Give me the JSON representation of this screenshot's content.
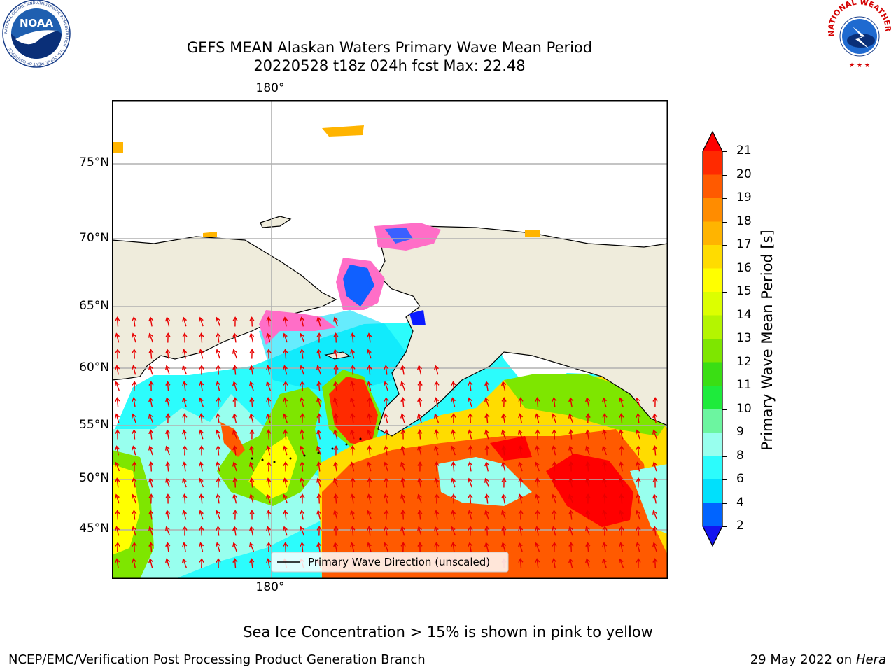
{
  "title": {
    "line1": "GEFS MEAN Alaskan Waters Primary Wave Mean Period",
    "line2": "20220528 t18z 024h fcst   Max: 22.48"
  },
  "logos": {
    "noaa_text": "NOAA",
    "noaa_ring": "NATIONAL OCEANIC AND ATMOSPHERIC ADMINISTRATION · U.S. DEPARTMENT OF COMMERCE",
    "nws_ring": "NATIONAL WEATHER SERVICE"
  },
  "map": {
    "lat_labels": [
      "75°N",
      "70°N",
      "65°N",
      "60°N",
      "55°N",
      "50°N",
      "45°N"
    ],
    "lon_label_top": "180°",
    "lon_label_bottom": "180°",
    "legend_label": "Primary Wave Direction (unscaled)",
    "land_color": "#efecdc",
    "arrow_color": "#e80000",
    "grid_color": "#b0b0b0"
  },
  "colorbar": {
    "label": "Primary Wave Mean Period [s]",
    "ticks": [
      "21",
      "20",
      "19",
      "18",
      "17",
      "16",
      "15",
      "14",
      "13",
      "12",
      "11",
      "10",
      "9",
      "8",
      "6",
      "4",
      "2"
    ],
    "colors": [
      "#ff0000",
      "#ff2a00",
      "#ff5a00",
      "#ff8c00",
      "#ffb400",
      "#ffdc00",
      "#ffff00",
      "#dcff00",
      "#b4f500",
      "#7ee600",
      "#3ade14",
      "#1eeb3c",
      "#6cf5a0",
      "#98ffee",
      "#2cfcfc",
      "#00e0fc",
      "#0064ff",
      "#1414f0"
    ]
  },
  "footer": {
    "note": "Sea Ice Concentration > 15% is shown in pink to yellow",
    "branch": "NCEP/EMC/Verification Post Processing Product Generation Branch",
    "date_prefix": "29 May 2022 on",
    "machine": "Hera"
  }
}
